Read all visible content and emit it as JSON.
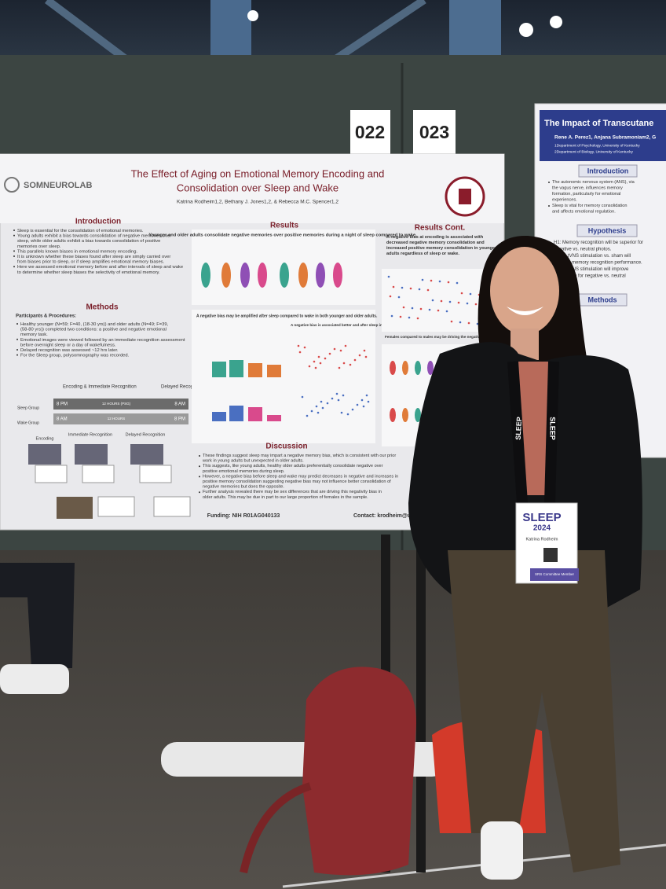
{
  "booth_numbers": [
    "022",
    "023"
  ],
  "poster": {
    "lab": "SOMNEUROLAB",
    "title_lines": [
      "The Effect of Aging on Emotional Memory Encoding and",
      "Consolidation over Sleep and Wake"
    ],
    "authors": "Katrina Rodheim1,2, Bethany J. Jones1,2, & Rebecca M.C. Spencer1,2",
    "sections": {
      "introduction": {
        "heading": "Introduction",
        "bullets": [
          "Sleep is essential for the consolidation of emotional memories.",
          "Young adults exhibit a bias towards consolidation of negative memories over sleep, while older adults exhibit a bias towards consolidation of positive memories over sleep.",
          "This parallels known biases in emotional memory encoding.",
          "It is unknown whether these biases found after sleep are simply carried over from biases prior to sleep, or if sleep amplifies emotional memory biases.",
          "Here we assessed emotional memory before and after intervals of sleep and wake to determine whether sleep biases the selectivity of emotional memory."
        ]
      },
      "methods": {
        "heading": "Methods",
        "subheading": "Participants & Procedures:",
        "bullets": [
          "Healthy younger (N=59; F=40, (18-30 yrs)) and older adults (N=49; F=39, (58-80 yrs)) completed two conditions: a positive and negative emotional memory task.",
          "Emotional images were viewed followed by an immediate recognition assessment before overnight sleep or a day of wakefulness.",
          "Delayed recognition was assessed ~12 hrs later.",
          "For the Sleep group, polysomnography was recorded."
        ],
        "timeline": {
          "col1": "Encoding & Immediate Recognition",
          "col2": "Delayed Recognition",
          "sleep_group": "Sleep Group",
          "wake_group": "Wake Group",
          "sleep_start": "8 PM",
          "sleep_end": "8 AM",
          "wake_start": "8 AM",
          "wake_end": "8 PM",
          "interval_sleep": "12 HOURS (PSG)",
          "interval_wake": "12 HOURS",
          "stages": [
            "Encoding",
            "Immediate Recognition",
            "Delayed Recognition"
          ]
        }
      },
      "results": {
        "heading": "Results",
        "finding_1": "Younger and older adults consolidate negative memories over positive memories during a night of sleep compared to wake.",
        "finding_2": "A negative bias may be amplified after sleep compared to wake in both younger and older adults.",
        "finding_3": "A negative bias is associated better and after sleep in younger adults, and before and after wake in older adults."
      },
      "results_cont": {
        "heading": "Results Cont.",
        "finding_1": "A negative bias at encoding is associated with decreased negative memory consolidation and increased positive memory consolidation in younger adults regardless of sleep or wake.",
        "finding_2": "Females compared to males may be driving the negative memory consolidation in older adults."
      },
      "discussion": {
        "heading": "Discussion",
        "bullets": [
          "These findings suggest sleep may impart a negative memory bias, which is consistent with our prior work in young adults but unexpected in older adults.",
          "This suggests, like young adults, healthy older adults preferentially consolidate negative over positive emotional memories during sleep.",
          "However, a negative bias before sleep and wake may predict decreases in negative and increases in positive memory consolidation suggesting negative bias may not influence better consolidation of negative memories but does the opposite.",
          "Further analysis revealed there may be sex differences that are driving this negativity bias in older adults. This may be due in part to our large proportion of females in the sample."
        ]
      }
    },
    "funding": "Funding: NIH R01AG040133",
    "contact": "Contact: krodheim@umass.edu"
  },
  "neighbor_poster": {
    "title": "The Impact of Transcutane",
    "authors": "Rene A. Perez1, Anjana Subramoniam2, G",
    "affiliations": [
      "1Department of Psychology, University of Kentucky",
      "2Department of Biology, University of Kentucky"
    ],
    "introduction": {
      "heading": "Introduction",
      "bullets": [
        "The autonomic nervous system (ANS), via the vagus nerve, influences memory formation, particularly for emotional experiences.",
        "Sleep is vital for memory consolidation and affects emotional regulation."
      ]
    },
    "hypothesis": {
      "heading": "Hypothesis",
      "lines": [
        "H1: Memory recognition will be superior for",
        "negative vs. neutral photos.",
        "Active tVNS stimulation vs. sham will",
        "improve memory recognition performance.",
        "Active tVNS stimulation will improve",
        "recognition for negative vs. neutral"
      ]
    },
    "methods": {
      "heading": "Methods"
    }
  },
  "badge": {
    "event": "SLEEP",
    "year": "2024",
    "name": "Katrina Rodheim",
    "role": "SRS Committee Member"
  },
  "lanyard": "SLEEP"
}
